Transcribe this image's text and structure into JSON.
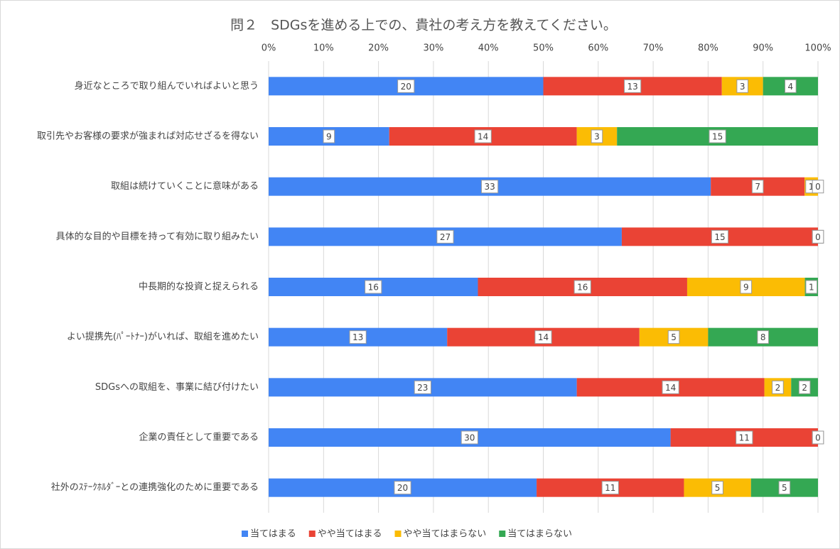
{
  "chart_data": {
    "type": "bar",
    "orientation": "horizontal",
    "stacked": "percent",
    "title": "問２　SDGsを進める上での、貴社の考え方を教えてください。",
    "categories": [
      "身近なところで取り組んでいればよいと思う",
      "取引先やお客様の要求が強まれば対応せざるを得ない",
      "取組は続けていくことに意味がある",
      "具体的な目的や目標を持って有効に取り組みたい",
      "中長期的な投資と捉えられる",
      "よい提携先(ﾊﾟｰﾄﾅｰ)がいれば、取組を進めたい",
      "SDGsへの取組を、事業に結び付けたい",
      "企業の責任として重要である",
      "社外のｽﾃｰｸﾎﾙﾀﾞｰとの連携強化のために重要である"
    ],
    "series": [
      {
        "name": "当てはまる",
        "color": "#4285f4",
        "values": [
          20,
          9,
          33,
          27,
          16,
          13,
          23,
          30,
          20
        ]
      },
      {
        "name": "やや当てはまる",
        "color": "#ea4335",
        "values": [
          13,
          14,
          7,
          15,
          16,
          14,
          14,
          11,
          11
        ]
      },
      {
        "name": "やや当てはまらない",
        "color": "#fbbc04",
        "values": [
          3,
          3,
          1,
          0,
          9,
          5,
          2,
          0,
          5
        ]
      },
      {
        "name": "当てはまらない",
        "color": "#34a853",
        "values": [
          4,
          15,
          0,
          0,
          1,
          8,
          2,
          0,
          5
        ]
      }
    ],
    "xlim": [
      0,
      100
    ],
    "xticks": [
      {
        "value": 0,
        "label": "0%"
      },
      {
        "value": 10,
        "label": "10%"
      },
      {
        "value": 20,
        "label": "20%"
      },
      {
        "value": 30,
        "label": "30%"
      },
      {
        "value": 40,
        "label": "40%"
      },
      {
        "value": 50,
        "label": "50%"
      },
      {
        "value": 60,
        "label": "60%"
      },
      {
        "value": 70,
        "label": "70%"
      },
      {
        "value": 80,
        "label": "80%"
      },
      {
        "value": 90,
        "label": "90%"
      },
      {
        "value": 100,
        "label": "100%"
      }
    ],
    "grid": true,
    "legend": "bottom"
  }
}
